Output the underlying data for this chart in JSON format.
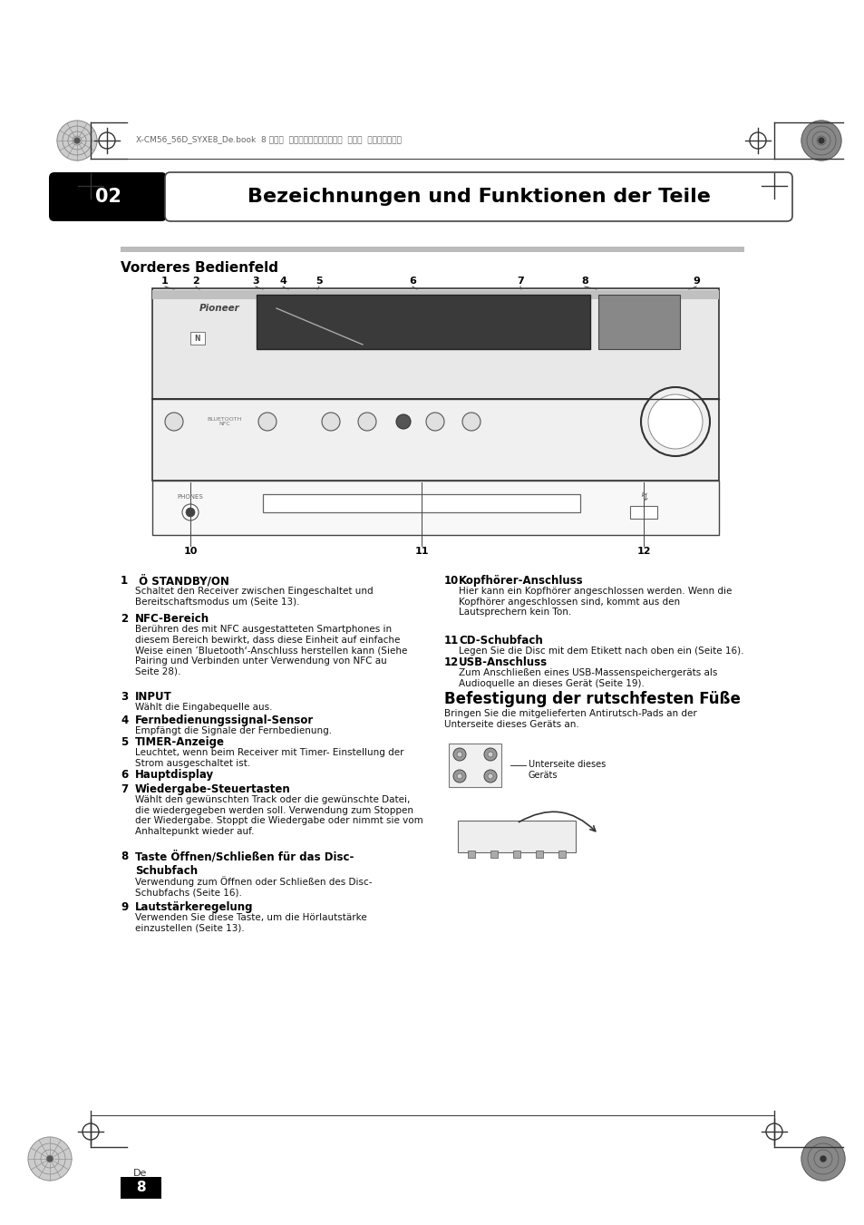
{
  "bg_color": "#ffffff",
  "page_header_text": "X-CM56_56D_SYXE8_De.book  8 ページ  ２０１６年１１月２５日  金曜日  午後４時５２分",
  "chapter_num": "02",
  "chapter_title": "Bezeichnungen und Funktionen der Teile",
  "section_title": "Vorderes Bedienfeld",
  "callout_numbers_top": [
    "1",
    "2",
    "3",
    "4",
    "5",
    "6",
    "7",
    "8",
    "9"
  ],
  "callout_numbers_bottom": [
    "10",
    "11",
    "12"
  ],
  "page_num": "8",
  "page_lang": "De",
  "befestigung_title": "Befestigung der rutschfesten Füße",
  "befestigung_text": "Bringen Sie die mitgelieferten Antirutsch-Pads an der\nUnterseite dieses Geräts an.",
  "unterseite_label": "Unterseite dieses\nGeräts"
}
